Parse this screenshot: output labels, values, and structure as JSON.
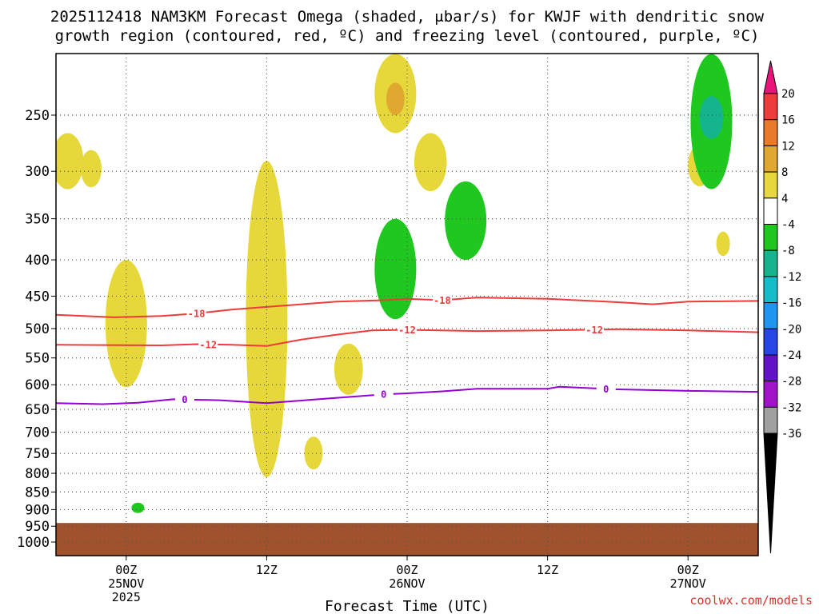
{
  "title_line1": "2025112418 NAM3KM Forecast Omega (shaded, μbar/s) for KWJF with dendritic snow",
  "title_line2": "growth region (contoured, red, ºC) and freezing level (contoured, purple, ºC)",
  "xlabel": "Forecast Time (UTC)",
  "credit": "coolwx.com/models",
  "colors": {
    "ground": "#a0522d",
    "grid": "#555555",
    "dgz_contour": "#ee3b3b",
    "freezing_contour": "#9400d3"
  },
  "chart_data": {
    "type": "heatmap",
    "x_time_range": [
      "2025-11-24 18Z",
      "2025-11-27 06Z"
    ],
    "x_ticks": [
      {
        "time": "2025-11-25 00Z",
        "lines": [
          "00Z",
          "25NOV",
          "2025"
        ]
      },
      {
        "time": "2025-11-25 12Z",
        "lines": [
          "12Z"
        ]
      },
      {
        "time": "2025-11-26 00Z",
        "lines": [
          "00Z",
          "26NOV"
        ]
      },
      {
        "time": "2025-11-26 12Z",
        "lines": [
          "12Z"
        ]
      },
      {
        "time": "2025-11-27 00Z",
        "lines": [
          "00Z",
          "27NOV"
        ]
      }
    ],
    "y_axis": {
      "type": "log-pressure",
      "units": "hPa",
      "range": [
        1050,
        200
      ]
    },
    "y_ticks": [
      250,
      300,
      350,
      400,
      450,
      500,
      550,
      600,
      650,
      700,
      750,
      800,
      850,
      900,
      950,
      1000
    ],
    "ground_top_hpa": 940,
    "grid": true,
    "colorbar": {
      "units": "μbar/s",
      "ticks": [
        "20",
        "16",
        "12",
        "8",
        "4",
        "-4",
        "-8",
        "-12",
        "-16",
        "-20",
        "-24",
        "-28",
        "-32",
        "-36"
      ],
      "bins": [
        {
          "range": [
            20,
            24
          ],
          "color": "#e8157a"
        },
        {
          "range": [
            16,
            20
          ],
          "color": "#ee3b3b"
        },
        {
          "range": [
            12,
            16
          ],
          "color": "#e87a2a"
        },
        {
          "range": [
            8,
            12
          ],
          "color": "#e0a830"
        },
        {
          "range": [
            4,
            8
          ],
          "color": "#e6d83a"
        },
        {
          "range": [
            -4,
            4
          ],
          "color": "#ffffff"
        },
        {
          "range": [
            -8,
            -4
          ],
          "color": "#1ec81e"
        },
        {
          "range": [
            -12,
            -8
          ],
          "color": "#14b48c"
        },
        {
          "range": [
            -16,
            -12
          ],
          "color": "#14bec8"
        },
        {
          "range": [
            -20,
            -16
          ],
          "color": "#1e96f0"
        },
        {
          "range": [
            -24,
            -20
          ],
          "color": "#2846e6"
        },
        {
          "range": [
            -28,
            -24
          ],
          "color": "#6414c8"
        },
        {
          "range": [
            -32,
            -28
          ],
          "color": "#a014c8"
        },
        {
          "range": [
            -36,
            -32
          ],
          "color": "#a0a0a0"
        }
      ],
      "extend_low_color": "#000000"
    },
    "contours": [
      {
        "name": "-18",
        "color": "#ee3b3b",
        "labels": [
          {
            "time": "2025-11-25 06Z"
          },
          {
            "time": "2025-11-26 03Z"
          }
        ],
        "points": [
          [
            "2025-11-24 18Z",
            478
          ],
          [
            "2025-11-24 23Z",
            482
          ],
          [
            "2025-11-25 03Z",
            480
          ],
          [
            "2025-11-25 06Z",
            476
          ],
          [
            "2025-11-25 09Z",
            470
          ],
          [
            "2025-11-25 12Z",
            466
          ],
          [
            "2025-11-25 18Z",
            458
          ],
          [
            "2025-11-25 22Z",
            456
          ],
          [
            "2025-11-26 00Z",
            454
          ],
          [
            "2025-11-26 03Z",
            456
          ],
          [
            "2025-11-26 06Z",
            452
          ],
          [
            "2025-11-26 12Z",
            454
          ],
          [
            "2025-11-26 18Z",
            459
          ],
          [
            "2025-11-26 21Z",
            462
          ],
          [
            "2025-11-27 00Z",
            458
          ],
          [
            "2025-11-27 06Z",
            457
          ]
        ]
      },
      {
        "name": "-12",
        "color": "#ee3b3b",
        "labels": [
          {
            "time": "2025-11-25 07Z"
          },
          {
            "time": "2025-11-26 00Z"
          },
          {
            "time": "2025-11-26 16Z"
          }
        ],
        "points": [
          [
            "2025-11-24 18Z",
            527
          ],
          [
            "2025-11-25 03Z",
            528
          ],
          [
            "2025-11-25 06Z",
            526
          ],
          [
            "2025-11-25 09Z",
            527
          ],
          [
            "2025-11-25 12Z",
            529
          ],
          [
            "2025-11-25 15Z",
            518
          ],
          [
            "2025-11-25 18Z",
            510
          ],
          [
            "2025-11-25 21Z",
            503
          ],
          [
            "2025-11-26 00Z",
            502
          ],
          [
            "2025-11-26 06Z",
            504
          ],
          [
            "2025-11-26 12Z",
            503
          ],
          [
            "2025-11-26 18Z",
            501
          ],
          [
            "2025-11-27 00Z",
            503
          ],
          [
            "2025-11-27 06Z",
            506
          ]
        ]
      },
      {
        "name": "0",
        "color": "#9400d3",
        "labels": [
          {
            "time": "2025-11-25 05Z"
          },
          {
            "time": "2025-11-25 22Z"
          },
          {
            "time": "2025-11-26 17Z"
          }
        ],
        "points": [
          [
            "2025-11-24 18Z",
            637
          ],
          [
            "2025-11-24 22Z",
            639
          ],
          [
            "2025-11-25 01Z",
            636
          ],
          [
            "2025-11-25 04Z",
            629
          ],
          [
            "2025-11-25 08Z",
            631
          ],
          [
            "2025-11-25 12Z",
            637
          ],
          [
            "2025-11-25 18Z",
            626
          ],
          [
            "2025-11-25 22Z",
            619
          ],
          [
            "2025-11-26 00Z",
            617
          ],
          [
            "2025-11-26 03Z",
            613
          ],
          [
            "2025-11-26 06Z",
            608
          ],
          [
            "2025-11-26 12Z",
            608
          ],
          [
            "2025-11-26 13Z",
            604
          ],
          [
            "2025-11-26 18Z",
            609
          ],
          [
            "2025-11-27 00Z",
            612
          ],
          [
            "2025-11-27 06Z",
            614
          ]
        ]
      }
    ],
    "omega_regions": [
      {
        "time": "2025-11-24 19Z",
        "p_top": 265,
        "p_bottom": 318,
        "bin": "4 to 8"
      },
      {
        "time": "2025-11-24 21Z",
        "p_top": 280,
        "p_bottom": 316,
        "bin": "4 to 8"
      },
      {
        "time": "2025-11-25 00Z",
        "p_top": 400,
        "p_bottom": 605,
        "bin": "4 to 8"
      },
      {
        "time": "2025-11-25 12Z",
        "p_top": 290,
        "p_bottom": 810,
        "bin": "4 to 8"
      },
      {
        "time": "2025-11-25 16Z",
        "p_top": 710,
        "p_bottom": 790,
        "bin": "4 to 8"
      },
      {
        "time": "2025-11-25 19Z",
        "p_top": 525,
        "p_bottom": 620,
        "bin": "4 to 8"
      },
      {
        "time": "2025-11-25 23Z",
        "p_top": 205,
        "p_bottom": 265,
        "bin": "4 to 8"
      },
      {
        "time": "2025-11-25 23Z",
        "p_top": 225,
        "p_bottom": 250,
        "bin": "8 to 12"
      },
      {
        "time": "2025-11-26 02Z",
        "p_top": 265,
        "p_bottom": 320,
        "bin": "4 to 8"
      },
      {
        "time": "2025-11-27 01Z",
        "p_top": 275,
        "p_bottom": 315,
        "bin": "4 to 8"
      },
      {
        "time": "2025-11-27 03Z",
        "p_top": 365,
        "p_bottom": 395,
        "bin": "4 to 8"
      },
      {
        "time": "2025-11-25 01Z",
        "p_top": 880,
        "p_bottom": 910,
        "bin": "-8 to -4"
      },
      {
        "time": "2025-11-25 23Z",
        "p_top": 350,
        "p_bottom": 485,
        "bin": "-8 to -4"
      },
      {
        "time": "2025-11-26 05Z",
        "p_top": 310,
        "p_bottom": 400,
        "bin": "-8 to -4"
      },
      {
        "time": "2025-11-27 02Z",
        "p_top": 205,
        "p_bottom": 318,
        "bin": "-8 to -4"
      },
      {
        "time": "2025-11-27 02Z",
        "p_top": 235,
        "p_bottom": 270,
        "bin": "-12 to -8"
      }
    ]
  }
}
